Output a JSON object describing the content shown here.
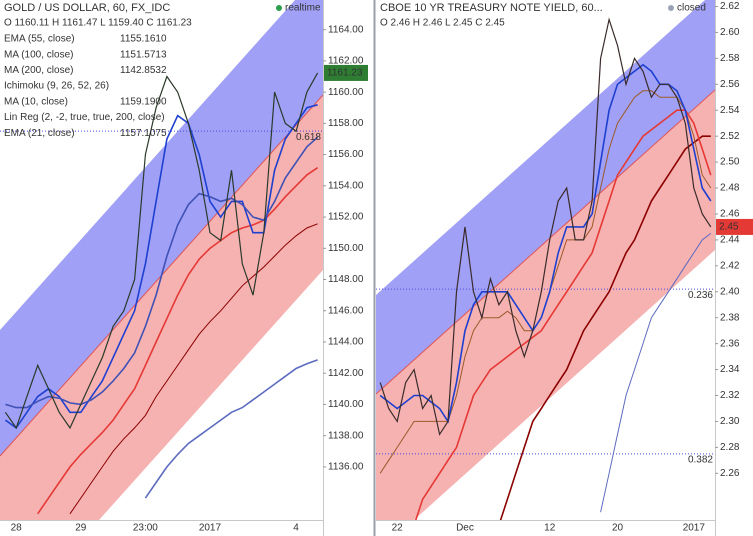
{
  "chart_data": [
    {
      "type": "line",
      "title": "GOLD / US DOLLAR, 60, FX_IDC",
      "ohlc": "O 1160.11  H 1161.47  L 1159.40  C 1161.23",
      "ohlc_color": "#2e7d32",
      "status": "realtime",
      "status_color": "#2e9e4f",
      "categories": [
        null,
        "28",
        null,
        null,
        null,
        null,
        null,
        "29",
        null,
        null,
        null,
        null,
        null,
        "23:00",
        null,
        null,
        null,
        null,
        null,
        "2017",
        null,
        null,
        null,
        null,
        null,
        null,
        null,
        "4",
        null,
        null
      ],
      "ylim": [
        1132.6,
        1165.9
      ],
      "yticks": [
        {
          "value": 1136,
          "label": "1136.00"
        },
        {
          "value": 1138,
          "label": "1138.00"
        },
        {
          "value": 1140,
          "label": "1140.00"
        },
        {
          "value": 1142,
          "label": "1142.00"
        },
        {
          "value": 1144,
          "label": "1144.00"
        },
        {
          "value": 1146,
          "label": "1146.00"
        },
        {
          "value": 1148,
          "label": "1148.00"
        },
        {
          "value": 1150,
          "label": "1150.00"
        },
        {
          "value": 1152,
          "label": "1152.00"
        },
        {
          "value": 1154,
          "label": "1154.00"
        },
        {
          "value": 1156,
          "label": "1156.00"
        },
        {
          "value": 1158,
          "label": "1158.00"
        },
        {
          "value": 1160,
          "label": "1160.00"
        },
        {
          "value": 1162,
          "label": "1162.00"
        },
        {
          "value": 1164,
          "label": "1164.00"
        }
      ],
      "grid": false,
      "price": {
        "color": "#2b3a2b",
        "last_color": "#2e7d32",
        "values": [
          1139.5,
          1138.5,
          1140.5,
          1142.5,
          1141,
          1139.5,
          1138.5,
          1140,
          1141.5,
          1143,
          1145,
          1146,
          1148,
          1156,
          1159,
          1161,
          1160,
          1158,
          1155,
          1151,
          1150.5,
          1155,
          1149,
          1147,
          1151,
          1160,
          1158,
          1157.5,
          1160,
          1161.23
        ]
      },
      "fib_levels": [
        {
          "value": 1157.5,
          "label": "0.618"
        }
      ],
      "studies": [
        {
          "name": "EMA (55, close)",
          "color": "#e53935",
          "value_label": "1155.1610",
          "values": [
            null,
            null,
            null,
            1133,
            1134,
            1135,
            1136,
            1136.8,
            1137.5,
            1138.2,
            1139,
            1140,
            1141,
            1142.5,
            1144,
            1145.5,
            1147,
            1148.3,
            1149.3,
            1150,
            1150.5,
            1151,
            1151.3,
            1151.5,
            1151.8,
            1152.5,
            1153.3,
            1154,
            1154.7,
            1155.161
          ]
        },
        {
          "name": "MA (100, close)",
          "color": "#8b0000",
          "value_label": "1151.5713",
          "values": [
            null,
            null,
            null,
            null,
            null,
            null,
            1133,
            1134,
            1135,
            1136,
            1137,
            1137.8,
            1138.5,
            1139.3,
            1140.5,
            1141.5,
            1142.5,
            1143.5,
            1144.5,
            1145.3,
            1146,
            1146.8,
            1147.6,
            1148.2,
            1148.8,
            1149.5,
            1150.2,
            1150.8,
            1151.3,
            1151.5713
          ]
        },
        {
          "name": "MA (200, close)",
          "color": "#5c6bc0",
          "value_label": "1142.8532",
          "values": [
            null,
            null,
            null,
            null,
            null,
            null,
            null,
            null,
            null,
            null,
            null,
            null,
            null,
            1134,
            1135,
            1136,
            1136.8,
            1137.5,
            1138,
            1138.5,
            1139,
            1139.5,
            1139.8,
            1140.3,
            1140.8,
            1141.3,
            1141.8,
            1142.3,
            1142.6,
            1142.8532
          ]
        },
        {
          "name": "Ichimoku (9, 26, 52, 26)"
        },
        {
          "name": "MA (10, close)",
          "color": "#1e40d0",
          "value_label": "1159.1900",
          "values": [
            1139,
            1138.5,
            1139.5,
            1140.5,
            1141,
            1140.5,
            1139.5,
            1139.5,
            1140.5,
            1141.5,
            1143,
            1144.5,
            1146,
            1149,
            1153,
            1157,
            1158.5,
            1158,
            1156,
            1153,
            1152,
            1153,
            1153,
            1151,
            1151,
            1155,
            1157,
            1158,
            1159,
            1159.19
          ]
        },
        {
          "name": "Lin Reg (2, -2, true, true, 200, close)"
        },
        {
          "name": "EMA (21, close)",
          "color": "#3f51b5",
          "value_label": "1157.1075",
          "values": [
            1140,
            1139.8,
            1139.8,
            1140.2,
            1140.5,
            1140.4,
            1140.1,
            1140,
            1140.3,
            1140.8,
            1141.5,
            1142.3,
            1143.3,
            1145,
            1147,
            1149.5,
            1151.5,
            1152.8,
            1153.5,
            1153.3,
            1153,
            1153.2,
            1152.8,
            1152,
            1151.8,
            1153,
            1154.5,
            1155.5,
            1156.5,
            1157.1075
          ]
        }
      ]
    },
    {
      "type": "line",
      "title": "CBOE 10 YR TREASURY NOTE YIELD, 60...",
      "ohlc": "O 2.46  H 2.46  L 2.45  C 2.45",
      "ohlc_color": "#e53935",
      "status": "closed",
      "status_color": "#9aa3b5",
      "categories": [
        null,
        null,
        "22",
        null,
        null,
        null,
        null,
        null,
        null,
        null,
        "Dec",
        null,
        null,
        null,
        null,
        null,
        null,
        null,
        null,
        null,
        "12",
        null,
        null,
        null,
        null,
        null,
        null,
        null,
        "20",
        null,
        null,
        null,
        null,
        null,
        null,
        null,
        null,
        "2017",
        null,
        null
      ],
      "ylim": [
        2.224,
        2.625
      ],
      "yticks": [
        2.26,
        2.28,
        {
          "value": 2.3,
          "label": "2.30"
        },
        2.32,
        2.34,
        2.36,
        2.38,
        {
          "value": 2.4,
          "label": "2.40"
        },
        2.42,
        2.44,
        2.46,
        2.48,
        {
          "value": 2.5,
          "label": "2.50"
        },
        2.52,
        2.54,
        2.56,
        2.58,
        {
          "value": 2.6,
          "label": "2.60"
        },
        2.62
      ],
      "grid": false,
      "price": {
        "color": "#3a2b2b",
        "last_color": "#e53935",
        "values": [
          2.33,
          2.31,
          2.3,
          2.33,
          2.34,
          2.31,
          2.32,
          2.29,
          2.3,
          2.4,
          2.45,
          2.4,
          2.38,
          2.41,
          2.39,
          2.4,
          2.37,
          2.35,
          2.37,
          2.4,
          2.44,
          2.47,
          2.48,
          2.44,
          2.44,
          2.47,
          2.58,
          2.61,
          2.59,
          2.56,
          2.58,
          2.57,
          2.55,
          2.56,
          2.56,
          2.55,
          2.53,
          2.48,
          2.46,
          2.45
        ]
      },
      "fib_levels": [
        {
          "value": 2.402,
          "label": "0.236"
        },
        {
          "value": 2.275,
          "label": "0.382"
        }
      ],
      "studies": [
        {
          "color": "#8b0000",
          "values": [
            null,
            null,
            null,
            null,
            null,
            null,
            null,
            null,
            null,
            null,
            null,
            null,
            null,
            null,
            2.22,
            2.24,
            2.26,
            2.28,
            2.3,
            2.31,
            2.32,
            2.33,
            2.34,
            2.355,
            2.37,
            2.38,
            2.39,
            2.4,
            2.415,
            2.43,
            2.44,
            2.455,
            2.47,
            2.48,
            2.49,
            2.5,
            2.51,
            2.515,
            2.52,
            2.52
          ]
        },
        {
          "color": "#5c6bc0",
          "values": [
            null,
            null,
            null,
            null,
            null,
            null,
            null,
            null,
            null,
            null,
            null,
            null,
            null,
            null,
            null,
            null,
            null,
            null,
            null,
            null,
            null,
            null,
            null,
            null,
            null,
            null,
            2.23,
            2.26,
            2.29,
            2.32,
            2.34,
            2.36,
            2.38,
            2.39,
            2.4,
            2.41,
            2.42,
            2.43,
            2.44,
            2.445
          ]
        },
        {
          "color": "#e53935",
          "values": [
            null,
            null,
            null,
            null,
            2.22,
            2.24,
            2.25,
            2.26,
            2.27,
            2.28,
            2.3,
            2.32,
            2.33,
            2.34,
            2.345,
            2.35,
            2.355,
            2.36,
            2.365,
            2.37,
            2.38,
            2.39,
            2.4,
            2.41,
            2.42,
            2.43,
            2.45,
            2.47,
            2.49,
            2.5,
            2.51,
            2.52,
            2.525,
            2.53,
            2.535,
            2.54,
            2.54,
            2.53,
            2.51,
            2.49
          ]
        },
        {
          "color": "#9c5a2a",
          "values": [
            2.26,
            2.27,
            2.28,
            2.29,
            2.3,
            2.3,
            2.3,
            2.3,
            2.3,
            2.32,
            2.35,
            2.37,
            2.38,
            2.38,
            2.38,
            2.385,
            2.38,
            2.37,
            2.37,
            2.38,
            2.4,
            2.42,
            2.44,
            2.44,
            2.44,
            2.45,
            2.48,
            2.51,
            2.53,
            2.54,
            2.55,
            2.555,
            2.555,
            2.55,
            2.55,
            2.55,
            2.54,
            2.52,
            2.49,
            2.48
          ]
        },
        {
          "color": "#1e40d0",
          "values": [
            2.32,
            2.315,
            2.31,
            2.315,
            2.32,
            2.32,
            2.315,
            2.31,
            2.3,
            2.33,
            2.37,
            2.39,
            2.4,
            2.4,
            2.4,
            2.4,
            2.39,
            2.38,
            2.37,
            2.38,
            2.4,
            2.43,
            2.45,
            2.45,
            2.45,
            2.46,
            2.5,
            2.54,
            2.56,
            2.565,
            2.57,
            2.575,
            2.57,
            2.56,
            2.56,
            2.555,
            2.54,
            2.51,
            2.48,
            2.47
          ]
        }
      ]
    }
  ]
}
